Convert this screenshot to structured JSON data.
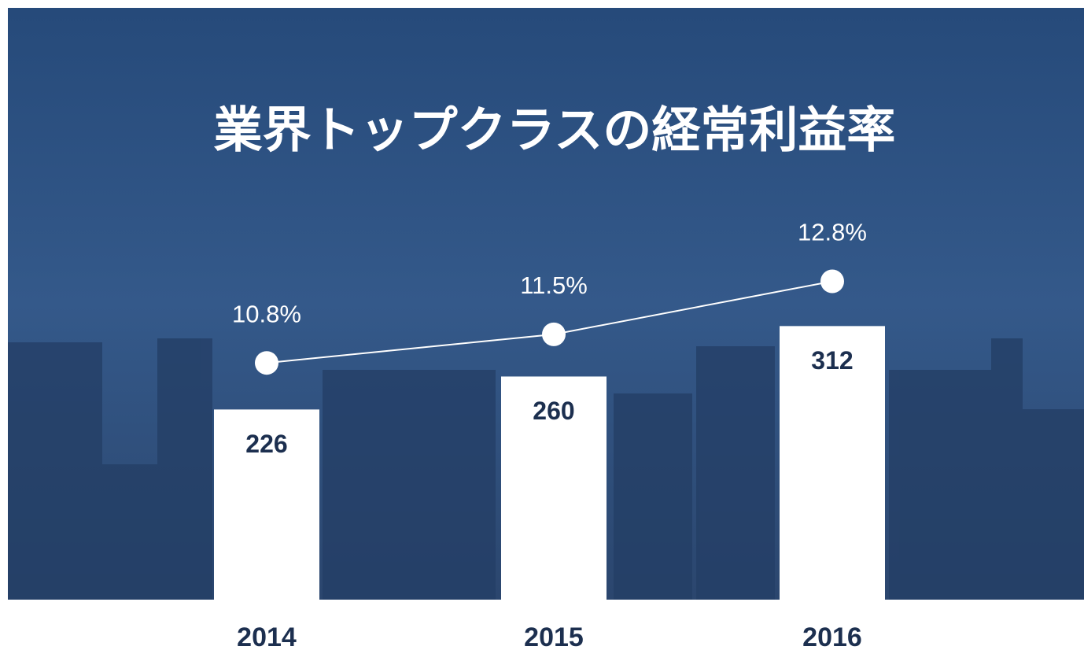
{
  "chart_data": {
    "type": "bar-line",
    "title": "業界トップクラスの経常利益率",
    "categories": [
      "2014",
      "2015",
      "2016"
    ],
    "series": [
      {
        "type": "bar",
        "color": "#ffffff",
        "values": [
          226,
          260,
          312
        ]
      },
      {
        "type": "line",
        "axis": "y2",
        "color": "#ffffff",
        "values": [
          10.8,
          11.5,
          12.8
        ],
        "value_labels": [
          "10.8%",
          "11.5%",
          "12.8%"
        ]
      }
    ],
    "ylim": [
      30,
      640
    ],
    "y2lim": [
      5,
      19.5
    ]
  }
}
